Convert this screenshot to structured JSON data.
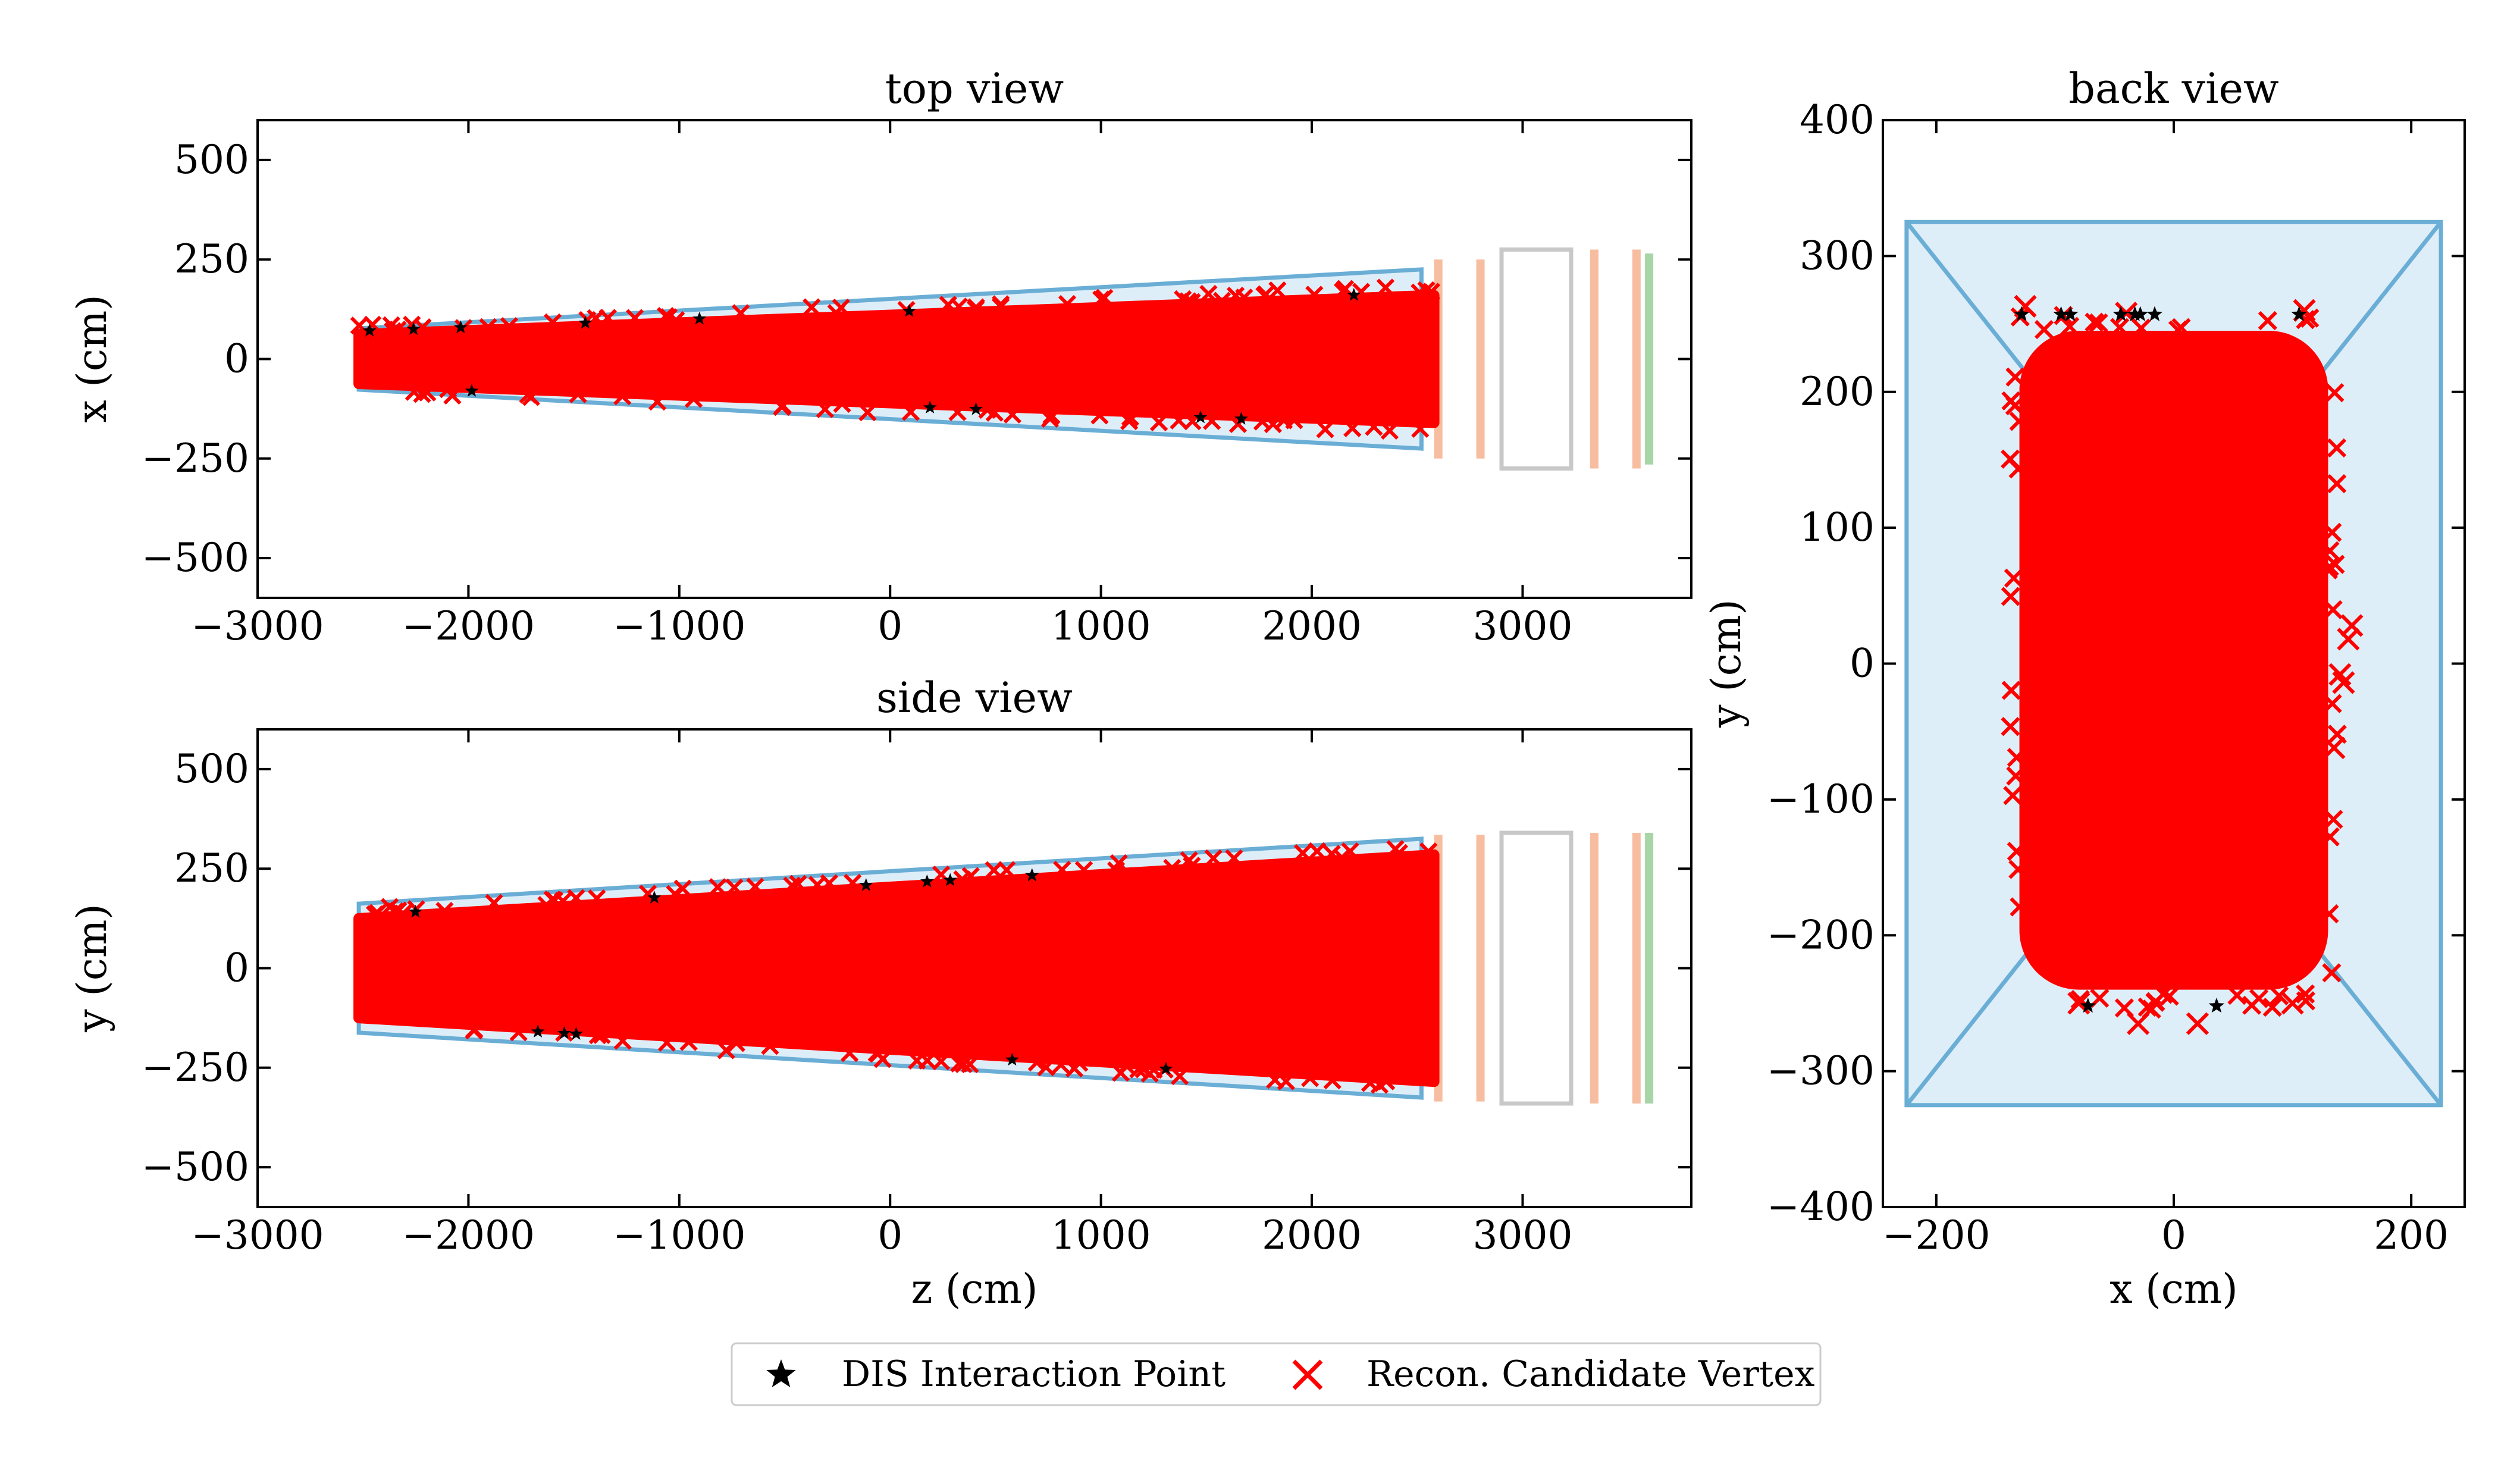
{
  "colors": {
    "decay_volume_fill": "#deeef8",
    "decay_volume_edge": "#6aaed6",
    "tracker_station": "#f7bda0",
    "calorimeter": "#c8c8c8",
    "muon_station": "#a8d5a8",
    "dis_point": "#000000",
    "candidate_vertex": "#ff0000"
  },
  "legend": {
    "position": "bottom-center",
    "items": [
      {
        "label": "DIS Interaction Point",
        "marker": "star",
        "color": "#000000"
      },
      {
        "label": "Recon. Candidate Vertex",
        "marker": "x",
        "color": "#ff0000"
      }
    ]
  },
  "chart_data": [
    {
      "type": "scatter",
      "id": "top",
      "title": "top view",
      "xlabel": "",
      "ylabel": "x (cm)",
      "xlim": [
        -3000,
        3800
      ],
      "ylim": [
        -600,
        600
      ],
      "xticks": [
        -3000,
        -2000,
        -1000,
        0,
        1000,
        2000,
        3000
      ],
      "xtick_labels": [
        "−3000",
        "−2000",
        "−1000",
        "0",
        "1000",
        "2000",
        "3000"
      ],
      "yticks": [
        -500,
        -250,
        0,
        250,
        500
      ],
      "ytick_labels": [
        "−500",
        "−250",
        "0",
        "250",
        "500"
      ],
      "grid": false,
      "decay_volume": [
        [
          -2520,
          77
        ],
        [
          2520,
          225
        ],
        [
          2520,
          -225
        ],
        [
          -2520,
          -77
        ]
      ],
      "candidate_region": [
        [
          -2520,
          62
        ],
        [
          2580,
          160
        ],
        [
          2580,
          -160
        ],
        [
          -2520,
          -62
        ]
      ],
      "detector_elements": [
        {
          "kind": "tracker",
          "z": 2600,
          "half_width": 250
        },
        {
          "kind": "tracker",
          "z": 2800,
          "half_width": 250
        },
        {
          "kind": "calorimeter",
          "z0": 2900,
          "z1": 3230,
          "half_width": 275
        },
        {
          "kind": "tracker",
          "z": 3340,
          "half_width": 275
        },
        {
          "kind": "tracker",
          "z": 3540,
          "half_width": 275
        },
        {
          "kind": "muon",
          "z": 3600,
          "half_width": 265
        }
      ]
    },
    {
      "type": "scatter",
      "id": "side",
      "title": "side view",
      "xlabel": "z (cm)",
      "ylabel": "y (cm)",
      "xlim": [
        -3000,
        3800
      ],
      "ylim": [
        -600,
        600
      ],
      "xticks": [
        -3000,
        -2000,
        -1000,
        0,
        1000,
        2000,
        3000
      ],
      "xtick_labels": [
        "−3000",
        "−2000",
        "−1000",
        "0",
        "1000",
        "2000",
        "3000"
      ],
      "yticks": [
        -500,
        -250,
        0,
        250,
        500
      ],
      "ytick_labels": [
        "−500",
        "−250",
        "0",
        "250",
        "500"
      ],
      "grid": false,
      "decay_volume": [
        [
          -2520,
          162
        ],
        [
          2520,
          325
        ],
        [
          2520,
          -325
        ],
        [
          -2520,
          -162
        ]
      ],
      "candidate_region": [
        [
          -2520,
          125
        ],
        [
          2580,
          285
        ],
        [
          2580,
          -285
        ],
        [
          -2520,
          -125
        ]
      ],
      "detector_elements": [
        {
          "kind": "tracker",
          "z": 2600,
          "half_width": 335
        },
        {
          "kind": "tracker",
          "z": 2800,
          "half_width": 335
        },
        {
          "kind": "calorimeter",
          "z0": 2900,
          "z1": 3230,
          "half_width": 340
        },
        {
          "kind": "tracker",
          "z": 3340,
          "half_width": 340
        },
        {
          "kind": "tracker",
          "z": 3540,
          "half_width": 340
        },
        {
          "kind": "muon",
          "z": 3600,
          "half_width": 340
        }
      ]
    },
    {
      "type": "scatter",
      "id": "back",
      "title": "back view",
      "xlabel": "x (cm)",
      "ylabel": "y (cm)",
      "xlim": [
        -245,
        245
      ],
      "ylim": [
        -400,
        400
      ],
      "xticks": [
        -200,
        0,
        200
      ],
      "xtick_labels": [
        "−200",
        "0",
        "200"
      ],
      "yticks": [
        -400,
        -300,
        -200,
        -100,
        0,
        100,
        200,
        300,
        400
      ],
      "ytick_labels": [
        "−400",
        "−300",
        "−200",
        "−100",
        "0",
        "100",
        "200",
        "300",
        "400"
      ],
      "grid": false,
      "outer_frame": [
        [
          -225,
          325
        ],
        [
          225,
          325
        ],
        [
          225,
          -325
        ],
        [
          -225,
          -325
        ]
      ],
      "inner_frame": [
        [
          -77,
          162
        ],
        [
          77,
          162
        ],
        [
          77,
          -162
        ],
        [
          -77,
          -162
        ]
      ],
      "candidate_region": {
        "x0": -130,
        "x1": 130,
        "y0": -240,
        "y1": 245,
        "corner_radius": 50
      },
      "outliers": [
        {
          "x": -125,
          "y": 263
        },
        {
          "x": 150,
          "y": 28
        },
        {
          "x": 147,
          "y": 18
        },
        {
          "x": 140,
          "y": -8
        },
        {
          "x": 143,
          "y": -14
        },
        {
          "x": 135,
          "y": -62
        },
        {
          "x": -80,
          "y": -250
        },
        {
          "x": -30,
          "y": -265
        },
        {
          "x": 20,
          "y": -265
        },
        {
          "x": 100,
          "y": -250
        },
        {
          "x": 110,
          "y": 260
        },
        {
          "x": -40,
          "y": 258
        }
      ]
    }
  ]
}
